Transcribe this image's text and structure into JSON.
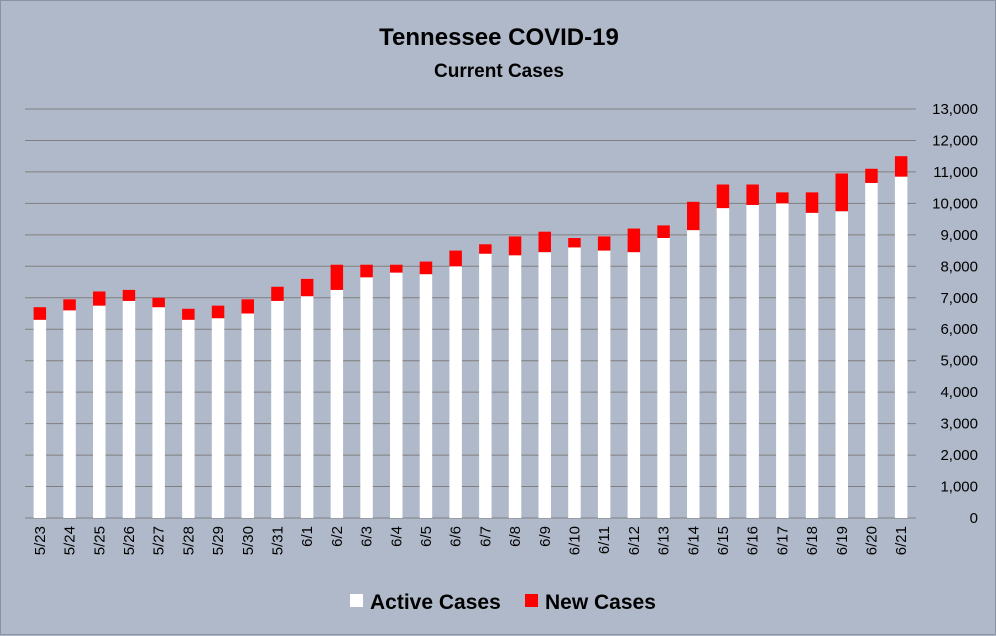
{
  "chart_data": {
    "type": "bar",
    "stacked": true,
    "title": "Tennessee COVID-19",
    "subtitle": "Current Cases",
    "categories": [
      "5/23",
      "5/24",
      "5/25",
      "5/26",
      "5/27",
      "5/28",
      "5/29",
      "5/30",
      "5/31",
      "6/1",
      "6/2",
      "6/3",
      "6/4",
      "6/5",
      "6/6",
      "6/7",
      "6/8",
      "6/9",
      "6/10",
      "6/11",
      "6/12",
      "6/13",
      "6/14",
      "6/15",
      "6/16",
      "6/17",
      "6/18",
      "6/19",
      "6/20",
      "6/21"
    ],
    "series": [
      {
        "name": "Active Cases",
        "color": "#ffffff",
        "values": [
          6300,
          6600,
          6750,
          6900,
          6700,
          6300,
          6350,
          6500,
          6900,
          7050,
          7250,
          7650,
          7800,
          7750,
          8000,
          8400,
          8350,
          8450,
          8600,
          8500,
          8450,
          8900,
          9150,
          9850,
          9950,
          10000,
          9700,
          9750,
          10650,
          10850
        ]
      },
      {
        "name": "New Cases",
        "color": "#ff0000",
        "values": [
          400,
          350,
          450,
          350,
          300,
          350,
          400,
          450,
          450,
          550,
          800,
          400,
          250,
          400,
          500,
          300,
          600,
          650,
          300,
          450,
          750,
          400,
          900,
          750,
          650,
          350,
          650,
          1200,
          450,
          650
        ]
      }
    ],
    "ylim": [
      0,
      13000
    ],
    "y_ticks": [
      "0",
      "1,000",
      "2,000",
      "3,000",
      "4,000",
      "5,000",
      "6,000",
      "7,000",
      "8,000",
      "9,000",
      "10,000",
      "11,000",
      "12,000",
      "13,000"
    ],
    "y_axis_side": "right",
    "xlabel": "",
    "ylabel": "",
    "grid": true,
    "legend_position": "bottom"
  }
}
